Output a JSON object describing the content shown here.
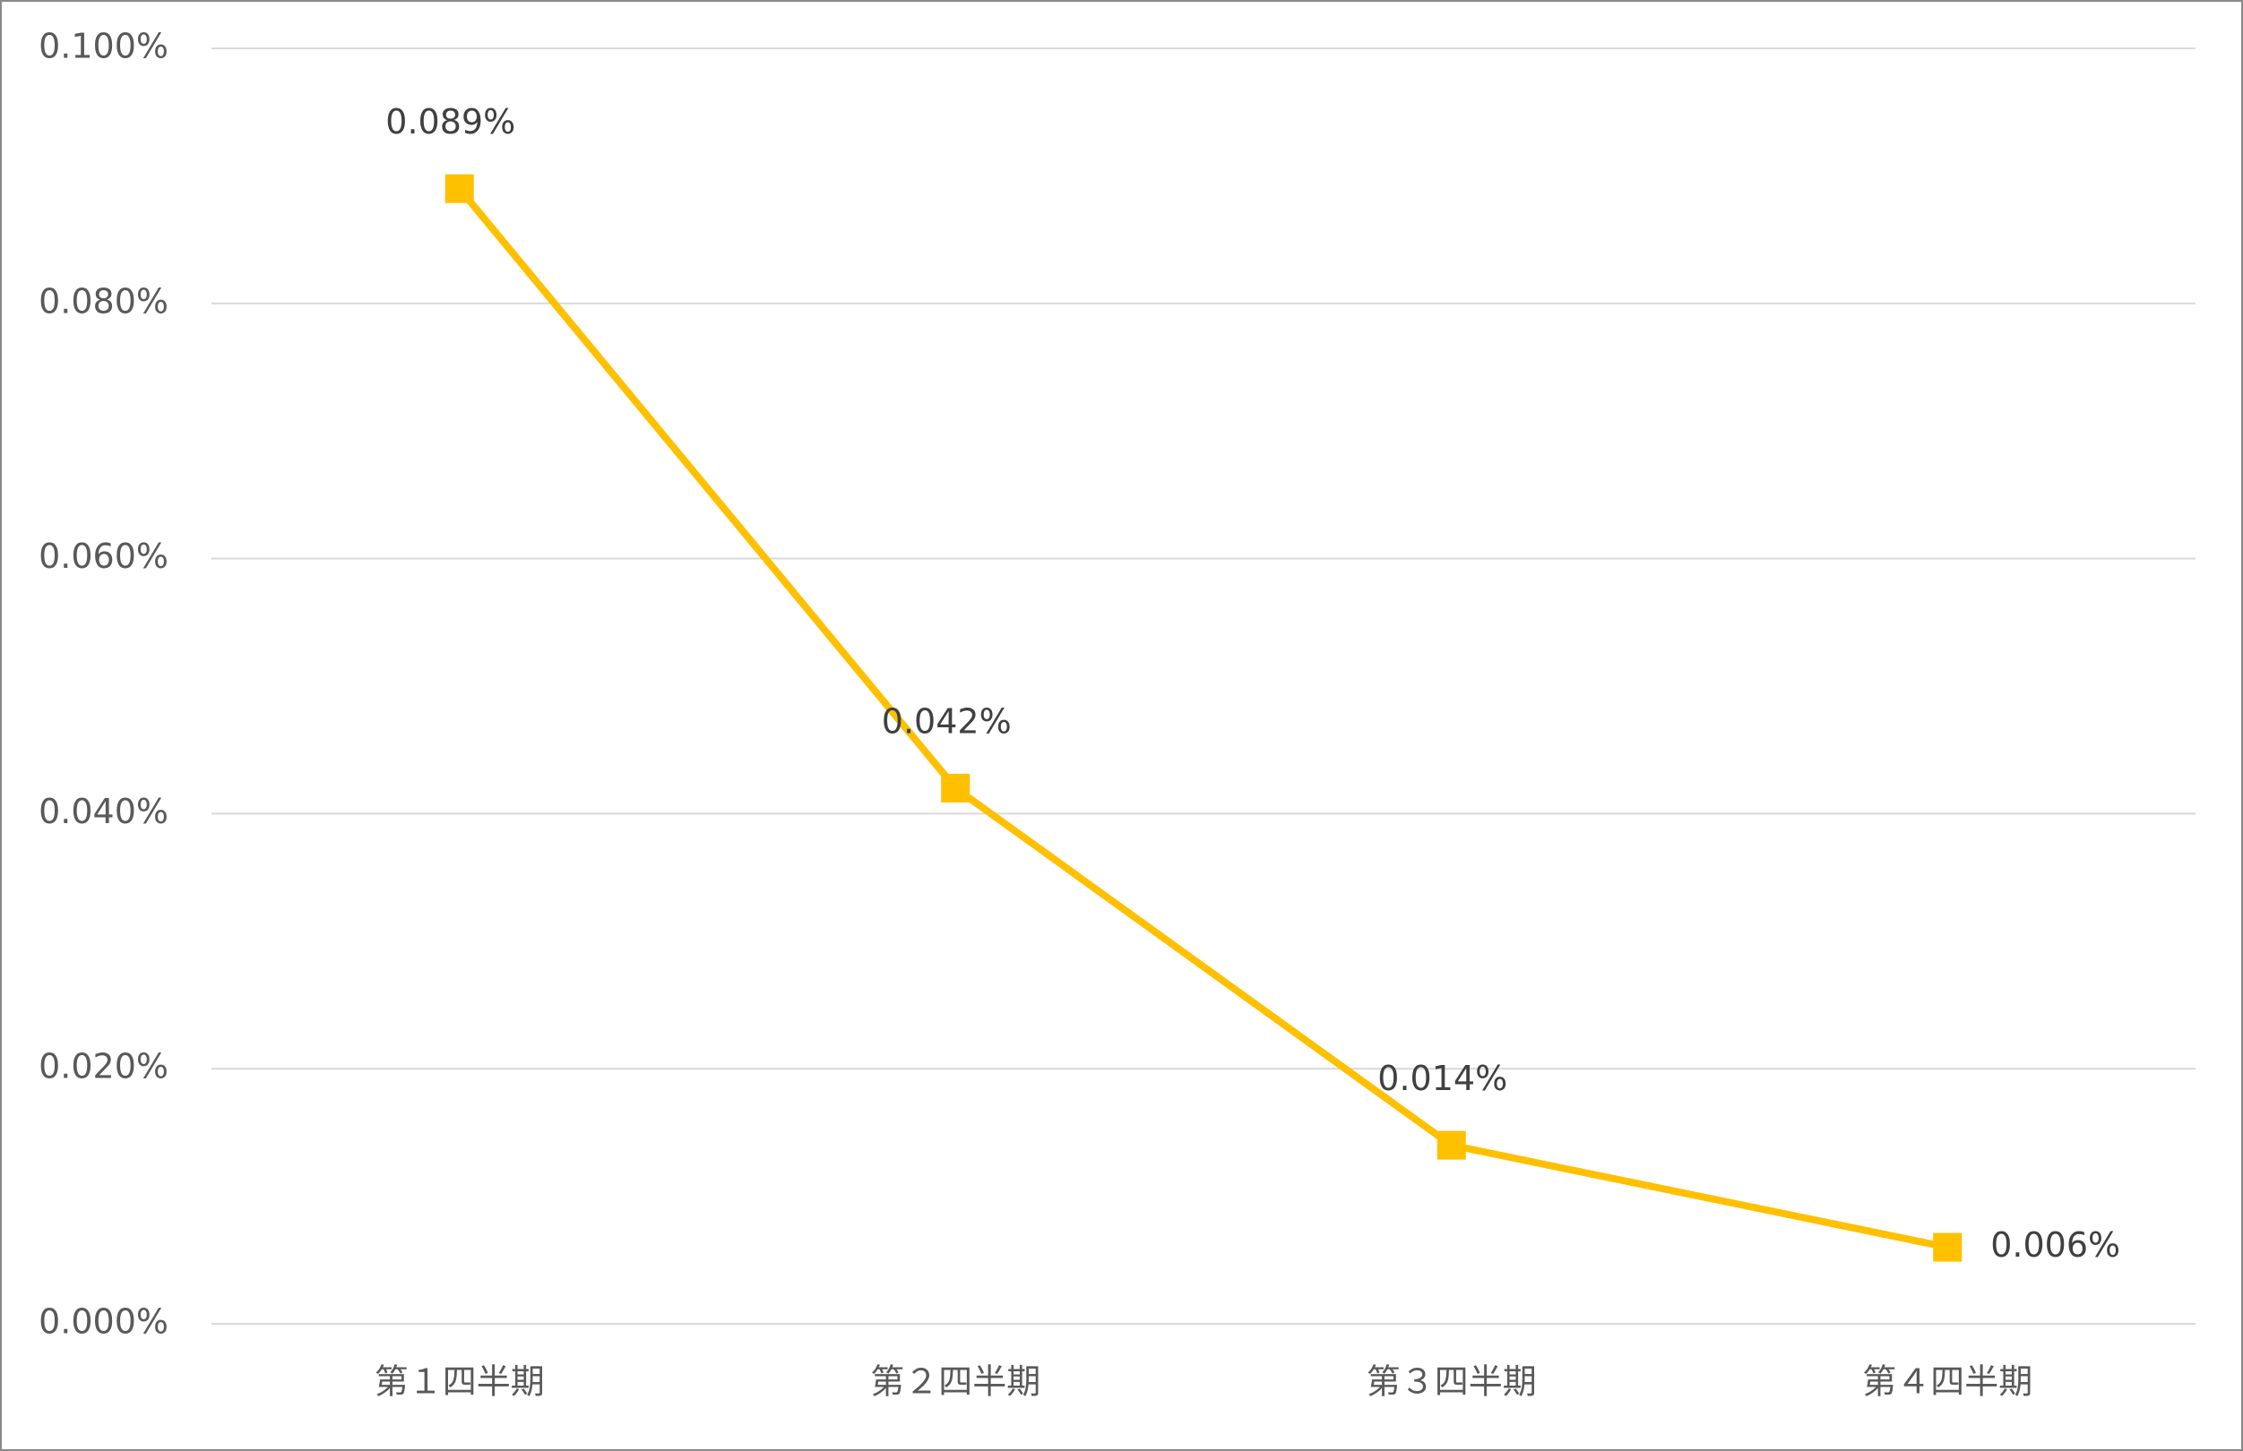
{
  "chart_data": {
    "type": "line",
    "categories": [
      "第１四半期",
      "第２四半期",
      "第３四半期",
      "第４四半期"
    ],
    "series": [
      {
        "name": "",
        "color": "#FFC000",
        "values": [
          0.089,
          0.042,
          0.014,
          0.006
        ],
        "value_labels": [
          "0.089%",
          "0.042%",
          "0.014%",
          "0.006%"
        ]
      }
    ],
    "ylim": [
      0,
      0.1
    ],
    "yticks": [
      {
        "value": 0,
        "label": "0.000%"
      },
      {
        "value": 0.02,
        "label": "0.020%"
      },
      {
        "value": 0.04,
        "label": "0.040%"
      },
      {
        "value": 0.06,
        "label": "0.060%"
      },
      {
        "value": 0.08,
        "label": "0.080%"
      },
      {
        "value": 0.1,
        "label": "0.100%"
      }
    ],
    "grid": true
  }
}
